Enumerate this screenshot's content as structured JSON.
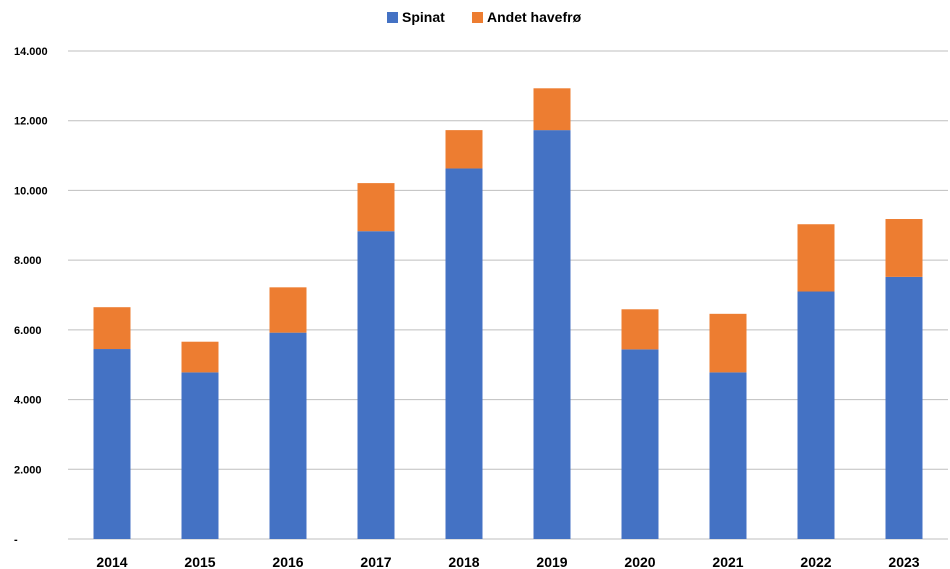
{
  "chart_data": {
    "type": "bar",
    "stacked": true,
    "categories": [
      "2014",
      "2015",
      "2016",
      "2017",
      "2018",
      "2019",
      "2020",
      "2021",
      "2022",
      "2023"
    ],
    "series": [
      {
        "name": "Spinat",
        "color": "#4472C4",
        "values": [
          5450,
          4780,
          5920,
          8830,
          10630,
          11730,
          5440,
          4780,
          7100,
          7520
        ]
      },
      {
        "name": "Andet havefrø",
        "color": "#ED7D31",
        "values": [
          1200,
          880,
          1300,
          1380,
          1100,
          1200,
          1150,
          1680,
          1930,
          1660
        ]
      }
    ],
    "y_ticks": [
      "-",
      "2.000",
      "4.000",
      "6.000",
      "8.000",
      "10.000",
      "12.000",
      "14.000"
    ],
    "ylim": [
      0,
      14000
    ],
    "grid": true,
    "legend_position": "top-center"
  }
}
